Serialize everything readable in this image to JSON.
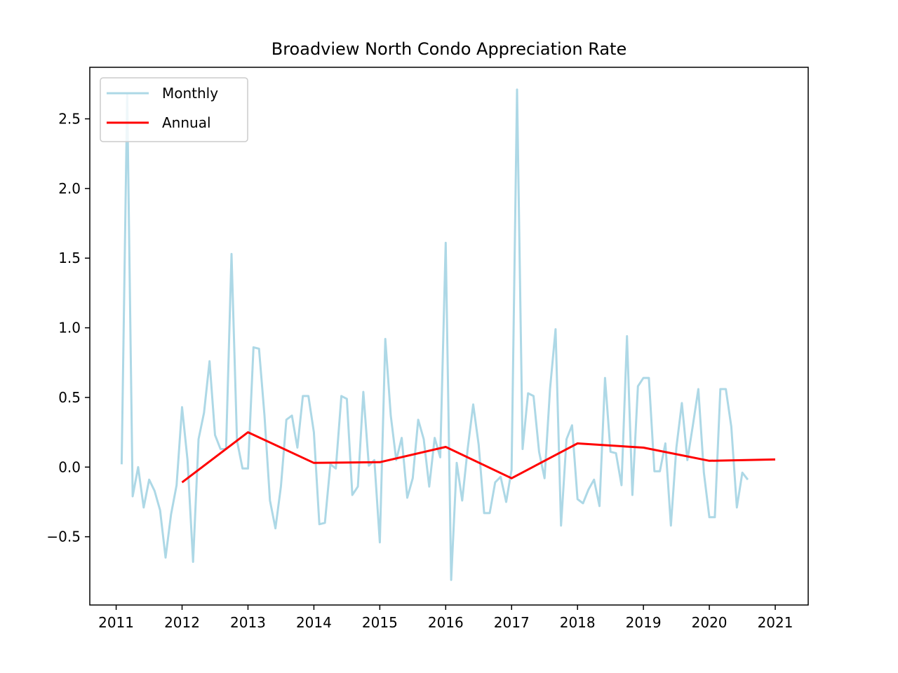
{
  "chart_data": {
    "type": "line",
    "title": "Broadview North Condo Appreciation Rate",
    "xlabel": "",
    "ylabel": "",
    "xlim": [
      2010.6,
      2021.5
    ],
    "ylim": [
      -0.99,
      2.87
    ],
    "x_ticks": [
      2011,
      2012,
      2013,
      2014,
      2015,
      2016,
      2017,
      2018,
      2019,
      2020,
      2021
    ],
    "y_ticks": [
      -0.5,
      0.0,
      0.5,
      1.0,
      1.5,
      2.0,
      2.5
    ],
    "y_tick_labels": [
      "−0.5",
      "0.0",
      "0.5",
      "1.0",
      "1.5",
      "2.0",
      "2.5"
    ],
    "grid": false,
    "legend": {
      "location": "upper left"
    },
    "series": [
      {
        "name": "Monthly",
        "color": "#add8e6",
        "x": [
          2011.083,
          2011.167,
          2011.25,
          2011.333,
          2011.417,
          2011.5,
          2011.583,
          2011.667,
          2011.75,
          2011.833,
          2011.917,
          2012.0,
          2012.083,
          2012.167,
          2012.25,
          2012.333,
          2012.417,
          2012.5,
          2012.583,
          2012.667,
          2012.75,
          2012.833,
          2012.917,
          2013.0,
          2013.083,
          2013.167,
          2013.25,
          2013.333,
          2013.417,
          2013.5,
          2013.583,
          2013.667,
          2013.75,
          2013.833,
          2013.917,
          2014.0,
          2014.083,
          2014.167,
          2014.25,
          2014.333,
          2014.417,
          2014.5,
          2014.583,
          2014.667,
          2014.75,
          2014.833,
          2014.917,
          2015.0,
          2015.083,
          2015.167,
          2015.25,
          2015.333,
          2015.417,
          2015.5,
          2015.583,
          2015.667,
          2015.75,
          2015.833,
          2015.917,
          2016.0,
          2016.083,
          2016.167,
          2016.25,
          2016.333,
          2016.417,
          2016.5,
          2016.583,
          2016.667,
          2016.75,
          2016.833,
          2016.917,
          2017.0,
          2017.083,
          2017.167,
          2017.25,
          2017.333,
          2017.417,
          2017.5,
          2017.583,
          2017.667,
          2017.75,
          2017.833,
          2017.917,
          2018.0,
          2018.083,
          2018.167,
          2018.25,
          2018.333,
          2018.417,
          2018.5,
          2018.583,
          2018.667,
          2018.75,
          2018.833,
          2018.917,
          2019.0,
          2019.083,
          2019.167,
          2019.25,
          2019.333,
          2019.417,
          2019.5,
          2019.583,
          2019.667,
          2019.75,
          2019.833,
          2019.917,
          2020.0,
          2020.083,
          2020.167,
          2020.25,
          2020.333,
          2020.417,
          2020.5,
          2020.583
        ],
        "values": [
          0.02,
          2.68,
          -0.21,
          0.0,
          -0.29,
          -0.09,
          -0.17,
          -0.31,
          -0.65,
          -0.34,
          -0.13,
          0.43,
          0.05,
          -0.68,
          0.2,
          0.39,
          0.76,
          0.23,
          0.13,
          0.13,
          1.53,
          0.19,
          -0.01,
          -0.01,
          0.86,
          0.85,
          0.37,
          -0.24,
          -0.44,
          -0.14,
          0.34,
          0.37,
          0.14,
          0.51,
          0.51,
          0.25,
          -0.41,
          -0.4,
          0.02,
          -0.01,
          0.51,
          0.49,
          -0.2,
          -0.14,
          0.54,
          0.01,
          0.05,
          -0.54,
          0.92,
          0.37,
          0.05,
          0.21,
          -0.22,
          -0.08,
          0.34,
          0.2,
          -0.14,
          0.21,
          0.07,
          1.61,
          -0.81,
          0.03,
          -0.24,
          0.13,
          0.45,
          0.16,
          -0.33,
          -0.33,
          -0.11,
          -0.07,
          -0.25,
          -0.02,
          2.71,
          0.13,
          0.53,
          0.51,
          0.11,
          -0.08,
          0.56,
          0.99,
          -0.42,
          0.2,
          0.3,
          -0.23,
          -0.26,
          -0.16,
          -0.09,
          -0.28,
          0.64,
          0.11,
          0.1,
          -0.13,
          0.94,
          -0.2,
          0.58,
          0.64,
          0.64,
          -0.03,
          -0.03,
          0.17,
          -0.42,
          0.14,
          0.46,
          0.05,
          0.3,
          0.56,
          -0.04,
          -0.36,
          -0.36,
          0.56,
          0.56,
          0.29,
          -0.29,
          -0.04,
          -0.09
        ]
      },
      {
        "name": "Annual",
        "color": "#ff0000",
        "x": [
          2012,
          2013,
          2014,
          2015,
          2016,
          2017,
          2018,
          2019,
          2020,
          2021
        ],
        "values": [
          -0.11,
          0.25,
          0.03,
          0.035,
          0.145,
          -0.08,
          0.17,
          0.14,
          0.045,
          0.055
        ]
      }
    ]
  }
}
